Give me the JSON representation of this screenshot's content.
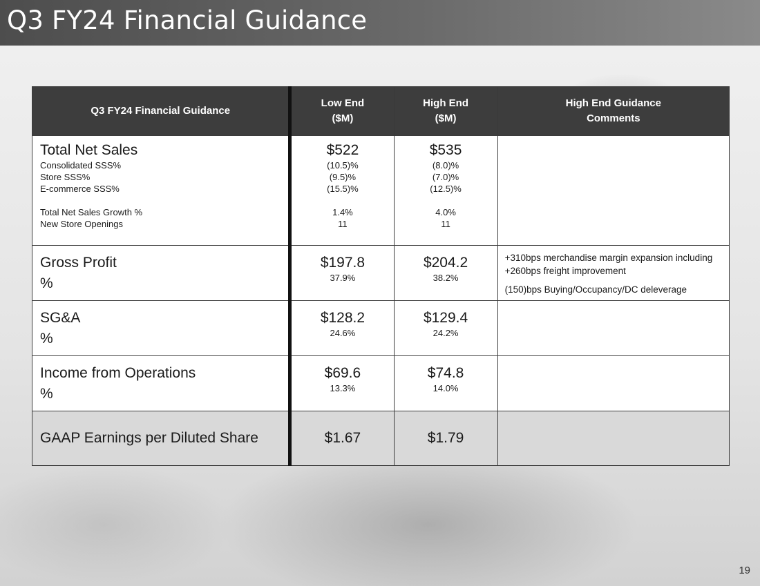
{
  "slide": {
    "title": "Q3 FY24 Financial Guidance",
    "page_number": "19"
  },
  "table": {
    "headers": {
      "label": "Q3 FY24 Financial Guidance",
      "low_line1": "Low End",
      "low_line2": "($M)",
      "high_line1": "High End",
      "high_line2": "($M)",
      "comment_line1": "High End Guidance",
      "comment_line2": "Comments"
    },
    "sales": {
      "title": "Total Net Sales",
      "low": "$522",
      "high": "$535",
      "sub": [
        {
          "label": "Consolidated SSS%",
          "low": "(10.5)%",
          "high": "(8.0)%"
        },
        {
          "label": "Store SSS%",
          "low": "(9.5)%",
          "high": "(7.0)%"
        },
        {
          "label": "E-commerce SSS%",
          "low": "(15.5)%",
          "high": "(12.5)%"
        }
      ],
      "sub2": [
        {
          "label": "Total Net Sales Growth %",
          "low": "1.4%",
          "high": "4.0%"
        },
        {
          "label": "New Store Openings",
          "low": "11",
          "high": "11"
        }
      ]
    },
    "gross_profit": {
      "title": "Gross Profit",
      "pct_label": "%",
      "low": "$197.8",
      "low_pct": "37.9%",
      "high": "$204.2",
      "high_pct": "38.2%",
      "comment1": "+310bps merchandise margin expansion including +260bps freight improvement",
      "comment2": "(150)bps Buying/Occupancy/DC deleverage"
    },
    "sga": {
      "title": "SG&A",
      "pct_label": "%",
      "low": "$128.2",
      "low_pct": "24.6%",
      "high": "$129.4",
      "high_pct": "24.2%"
    },
    "income": {
      "title": "Income from Operations",
      "pct_label": "%",
      "low": "$69.6",
      "low_pct": "13.3%",
      "high": "$74.8",
      "high_pct": "14.0%"
    },
    "eps": {
      "title": "GAAP Earnings per Diluted Share",
      "low": "$1.67",
      "high": "$1.79"
    }
  }
}
